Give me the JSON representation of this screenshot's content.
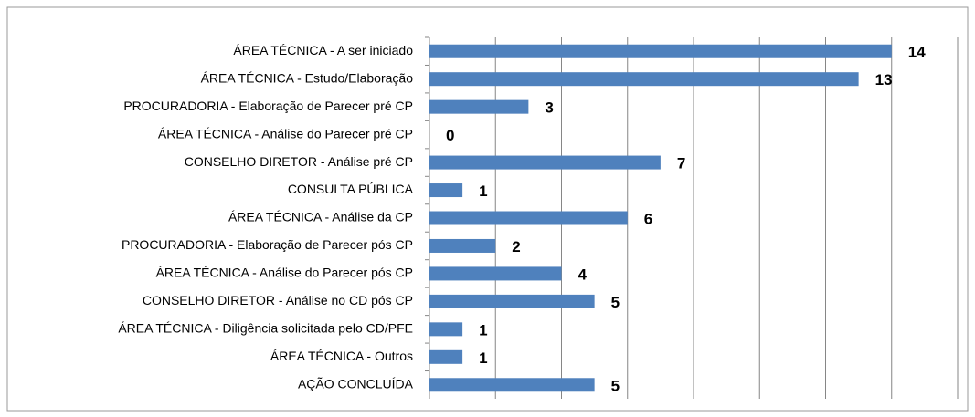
{
  "chart_data": {
    "type": "barh",
    "categories": [
      "ÁREA TÉCNICA - A ser iniciado",
      "ÁREA TÉCNICA - Estudo/Elaboração",
      "PROCURADORIA - Elaboração de Parecer pré CP",
      "ÁREA TÉCNICA - Análise do Parecer pré CP",
      "CONSELHO DIRETOR - Análise pré CP",
      "CONSULTA PÚBLICA",
      "ÁREA TÉCNICA - Análise da CP",
      "PROCURADORIA - Elaboração de Parecer pós CP",
      "ÁREA TÉCNICA - Análise do Parecer pós CP",
      "CONSELHO DIRETOR - Análise no CD pós CP",
      "ÁREA TÉCNICA - Diligência solicitada pelo CD/PFE",
      "ÁREA TÉCNICA - Outros",
      "AÇÃO CONCLUÍDA"
    ],
    "values": [
      14,
      13,
      3,
      0,
      7,
      1,
      6,
      2,
      4,
      5,
      1,
      1,
      5
    ],
    "color": "#4f81bd",
    "xlim": [
      0,
      16
    ],
    "xticks": [
      0,
      2,
      4,
      6,
      8,
      10,
      12,
      14,
      16
    ],
    "grid": true
  }
}
